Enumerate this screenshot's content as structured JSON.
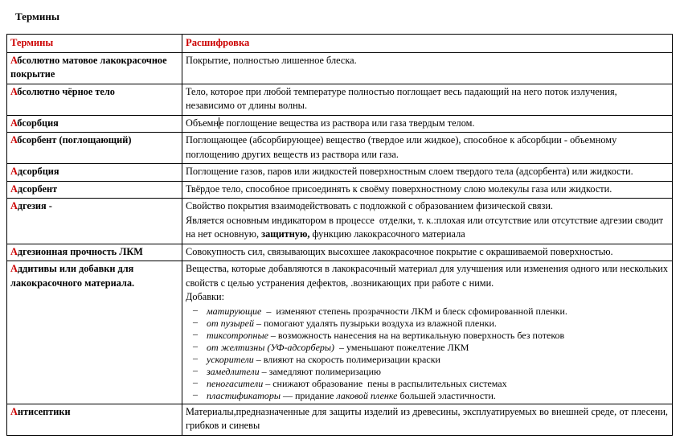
{
  "page_title": "Термины",
  "colors": {
    "accent_red": "#cc0000",
    "border_black": "#000000"
  },
  "table": {
    "header": {
      "term": "Термины",
      "definition": "Расшифровка"
    },
    "rows": [
      {
        "initial": "А",
        "term": "бсолютно матовое лакокрасочное покрытие",
        "def": "Покрытие, полностью лишенное блеска."
      },
      {
        "initial": "А",
        "term": "бсолютно чёрное тело",
        "def": "Тело, которое при любой температуре полностью поглощает весь падающий на него поток излучения, независимо от длины волны."
      },
      {
        "initial": "А",
        "term": "бсорбция",
        "def_pre": "Объемн",
        "def_post": "е поглощение вещества из раствора или газа твердым телом."
      },
      {
        "initial": "А",
        "term": "бсорбент (поглощающий)",
        "def": "Поглощающее (абсорбирующее) вещество (твердое или жидкое), способное к абсорбции - объемному поглощению других веществ из раствора или газа."
      },
      {
        "initial": "А",
        "term": "дсорбция",
        "def": "Поглощение газов, паров или жидкостей поверхностным слоем твердого тела (адсорбента) или жидкости."
      },
      {
        "initial": "А",
        "term": "дсорбент",
        "def": "Твёрдое тело, способное присоединять к своёму поверхностному слою молекулы газа или жидкости."
      },
      {
        "initial": "А",
        "term": "дгезия -",
        "def_line1": "Свойство покрытия взаимодействовать с подложкой с образованием физической связи.",
        "def_line2_pre": "Является основным индикатором в процессе  отделки, т. к.:плохая или отсутствие или отсутствие адгезии сводит на нет основную, ",
        "def_line2_bold": "защитную,",
        "def_line2_post": " функцию лакокрасочного материала"
      },
      {
        "initial": "А",
        "term": "дгезионная прочность ЛКМ",
        "def": "Совокупность сил, связывающих высохшее лакокрасочное покрытие с окрашиваемой поверхностью."
      },
      {
        "initial": "А",
        "term": "ддитивы или добавки для лакокрасочного материала.",
        "def_intro": "Вещества, которые добавляются в лакокрасочный материал для улучшения или изменения одного или нескольких свойств с целью устранения дефектов, .возникающих при работе с ними.",
        "def_subtitle": "Добавки:",
        "bullets": [
          {
            "dash": "–",
            "lead": "матирующие",
            "sep": "  –  ",
            "text": "изменяют степень прозрачности ЛКМ и блеск сфомированной пленки."
          },
          {
            "dash": "–",
            "lead": "от пузырей",
            "sep": " – ",
            "text": "помогают удалять пузырьки воздуха из влажной пленки."
          },
          {
            "dash": "–",
            "lead": "тиксотропные",
            "sep": " – ",
            "text": "возможность нанесения на на вертикальную поверхность без потеков"
          },
          {
            "dash": "–",
            "lead": "от желтизны (УФ-адсорберы)",
            "sep": "  – ",
            "text": "уменьшают пожелтение ЛКМ"
          },
          {
            "dash": "–",
            "lead": "ускорители",
            "sep": " – ",
            "text": "влияют на скорость полимеризации краски"
          },
          {
            "dash": "–",
            "lead": "замедлители",
            "sep": " – ",
            "text": "замедляют полимеризацию"
          },
          {
            "dash": "–",
            "lead": "пеногасители",
            "sep": " – ",
            "text": "снижают образование  пены в распылительных системах"
          },
          {
            "dash": "–",
            "lead": "пластификаторы",
            "sep": " — ",
            "text": "придание ",
            "italic2": "лаковой пленке",
            "text2": " большей эластичности."
          }
        ]
      },
      {
        "initial": "А",
        "term": "нтисептики",
        "def": "Материалы,предназначенные для защиты изделий из древесины, эксплуатируемых во внешней среде, от плесени, грибков и синевы"
      }
    ]
  }
}
